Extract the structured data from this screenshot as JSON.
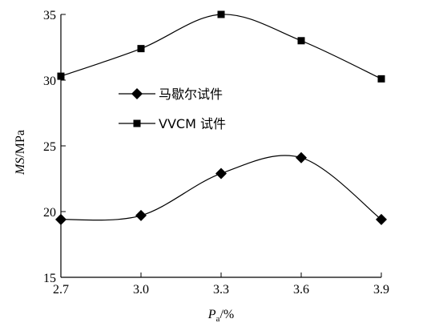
{
  "chart_data": {
    "type": "line",
    "x": [
      2.7,
      3.0,
      3.3,
      3.6,
      3.9
    ],
    "x_tick_labels": [
      "2.7",
      "3.0",
      "3.3",
      "3.6",
      "3.9"
    ],
    "y_tick_labels": [
      "15",
      "20",
      "25",
      "30",
      "35"
    ],
    "y_ticks": [
      15,
      20,
      25,
      30,
      35
    ],
    "xlim": [
      2.7,
      3.9
    ],
    "ylim": [
      15,
      35
    ],
    "xlabel": {
      "main": "P",
      "sub": "a",
      "unit": "/%"
    },
    "ylabel": {
      "main": "MS",
      "unit": "/MPa"
    },
    "grid": false,
    "legend_position": "upper-left",
    "series": [
      {
        "name": "马歇尔试件",
        "marker": "diamond",
        "values": [
          19.4,
          19.7,
          22.9,
          24.1,
          19.4
        ]
      },
      {
        "name": "VVCM 试件",
        "marker": "square",
        "values": [
          30.3,
          32.4,
          35.0,
          33.0,
          30.1
        ]
      }
    ]
  }
}
